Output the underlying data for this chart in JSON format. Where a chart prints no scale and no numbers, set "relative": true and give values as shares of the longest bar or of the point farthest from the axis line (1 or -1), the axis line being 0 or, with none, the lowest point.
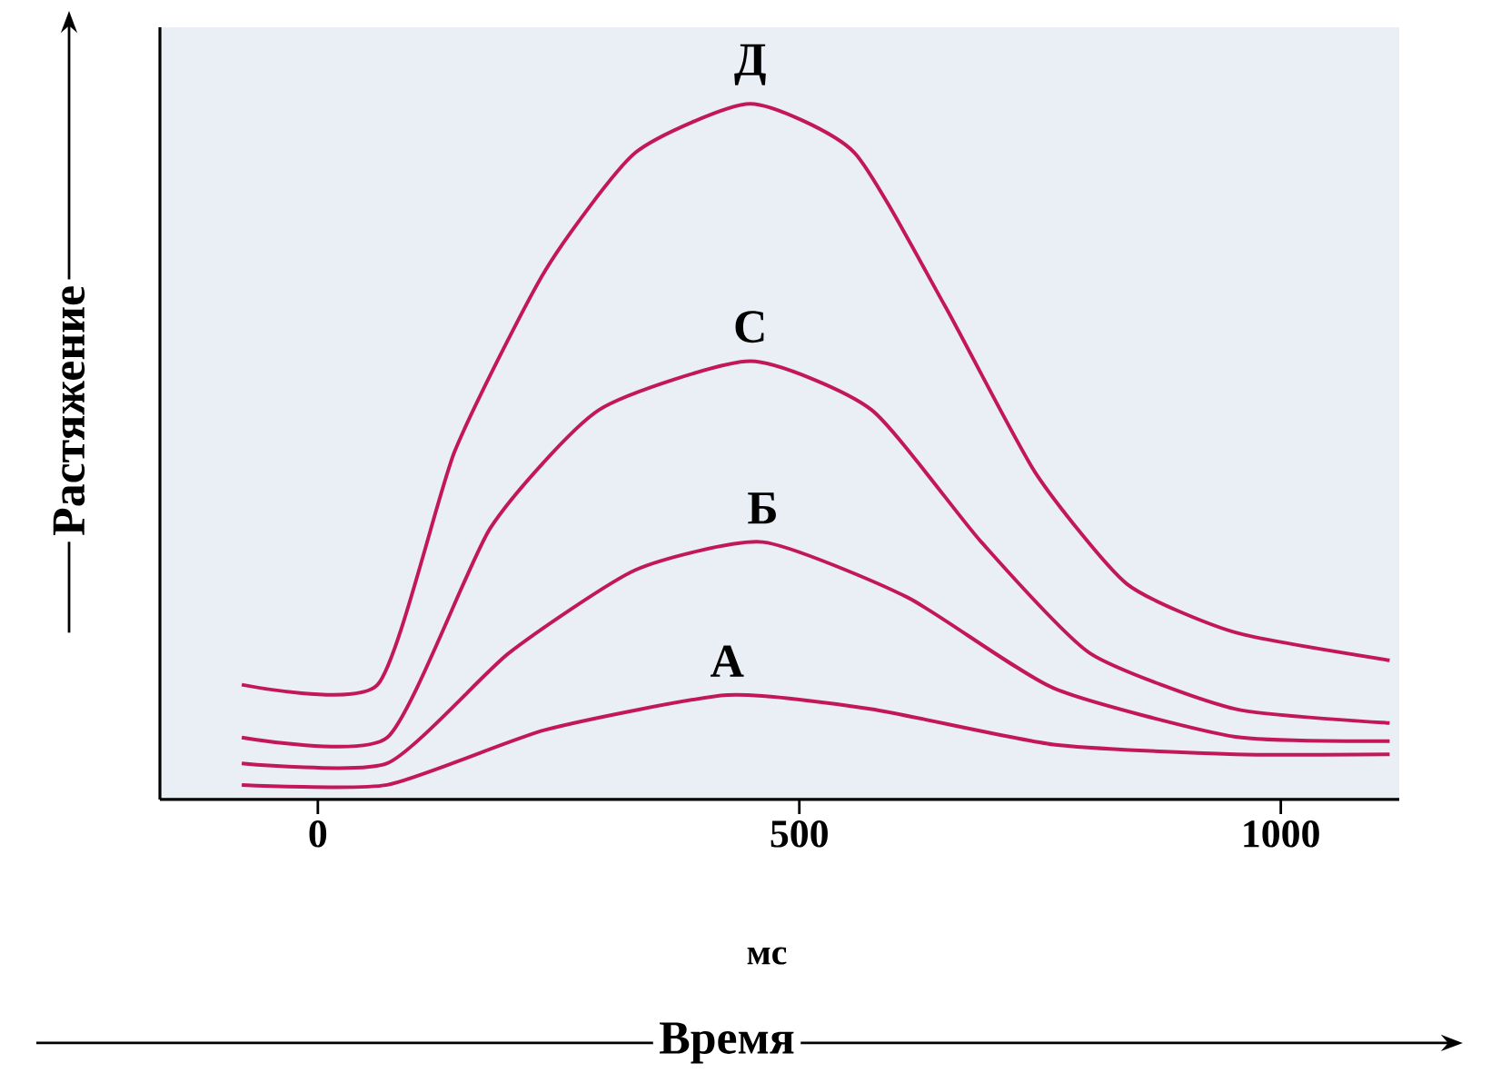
{
  "chart_data": {
    "type": "line",
    "relative": true,
    "xlabel": "мс",
    "ylabel": "Растяжение",
    "annotations": [
      "Время"
    ],
    "xlim": [
      -164,
      1123
    ],
    "xticks": [
      0,
      500,
      1000
    ],
    "tick_labels": "x",
    "grid": false,
    "legend": false,
    "marker": "none",
    "line_style": "solid",
    "series": [
      {
        "name": "А",
        "color": "#c2185b",
        "x": [
          -79,
          72,
          236,
          425,
          575,
          764,
          953,
          1113
        ],
        "values": [
          0.021,
          0.021,
          0.1,
          0.15,
          0.13,
          0.079,
          0.065,
          0.065
        ]
      },
      {
        "name": "Б",
        "color": "#c2185b",
        "x": [
          -79,
          72,
          198,
          330,
          462,
          613,
          764,
          953,
          1113
        ],
        "values": [
          0.052,
          0.052,
          0.21,
          0.33,
          0.37,
          0.29,
          0.16,
          0.09,
          0.084
        ]
      },
      {
        "name": "С",
        "color": "#c2185b",
        "x": [
          -79,
          72,
          179,
          292,
          449,
          575,
          689,
          802,
          953,
          1113
        ],
        "values": [
          0.089,
          0.089,
          0.39,
          0.56,
          0.63,
          0.56,
          0.37,
          0.21,
          0.13,
          0.11
        ]
      },
      {
        "name": "Д",
        "color": "#c2185b",
        "x": [
          -79,
          62,
          142,
          236,
          330,
          449,
          557,
          651,
          745,
          840,
          953,
          1113
        ],
        "values": [
          0.165,
          0.165,
          0.5,
          0.76,
          0.93,
          1.0,
          0.93,
          0.71,
          0.47,
          0.31,
          0.24,
          0.2
        ]
      }
    ]
  }
}
